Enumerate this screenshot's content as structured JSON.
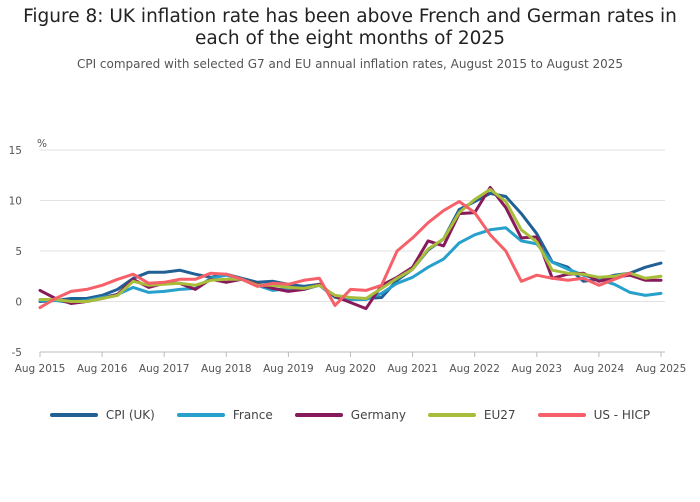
{
  "chart_data": {
    "type": "line",
    "title": "Figure 8: UK inflation rate has been above French and German rates in each of the eight months of 2025",
    "subtitle": "CPI compared with selected G7 and EU annual inflation rates, August 2015 to August 2025",
    "ylabel": "%",
    "ylim": [
      -5,
      15
    ],
    "yticks": [
      "15",
      "10",
      "5",
      "0",
      "-5"
    ],
    "ytick_values": [
      15,
      10,
      5,
      0,
      -5
    ],
    "xticks": [
      "Aug 2015",
      "Aug 2016",
      "Aug 2017",
      "Aug 2018",
      "Aug 2019",
      "Aug 2020",
      "Aug 2021",
      "Aug 2022",
      "Aug 2023",
      "Aug 2024",
      "Aug 2025"
    ],
    "x_start": 2015.58,
    "x_step": 0.25,
    "series": [
      {
        "name": "CPI (UK)",
        "color": "#206095",
        "values": [
          0,
          0.1,
          0.3,
          0.3,
          0.6,
          1.2,
          2.3,
          2.9,
          2.9,
          3.1,
          2.7,
          2.4,
          2.7,
          2.3,
          1.9,
          2.0,
          1.7,
          1.5,
          1.7,
          0.5,
          0.2,
          0.3,
          0.4,
          2.1,
          3.2,
          5.1,
          6.2,
          9.1,
          9.9,
          10.7,
          10.4,
          8.7,
          6.7,
          3.9,
          3.4,
          2.0,
          2.2,
          2.6,
          2.8,
          3.4,
          3.8
        ]
      },
      {
        "name": "France",
        "color": "#27a0cc",
        "values": [
          0.1,
          0.1,
          -0.1,
          0.1,
          0.4,
          0.7,
          1.4,
          0.9,
          1.0,
          1.2,
          1.3,
          2.3,
          2.6,
          2.2,
          1.6,
          1.1,
          1.3,
          1.2,
          1.6,
          0.4,
          0.2,
          0.2,
          0.8,
          1.8,
          2.4,
          3.4,
          4.2,
          5.8,
          6.6,
          7.1,
          7.3,
          6.0,
          5.7,
          3.9,
          3.2,
          2.6,
          2.2,
          1.7,
          0.9,
          0.6,
          0.8
        ]
      },
      {
        "name": "Germany",
        "color": "#871a5b",
        "values": [
          1.1,
          0.3,
          -0.2,
          0.0,
          0.3,
          0.7,
          2.2,
          1.4,
          1.8,
          1.8,
          1.2,
          2.2,
          1.9,
          2.2,
          1.7,
          1.3,
          1.0,
          1.2,
          1.7,
          0.5,
          -0.1,
          -0.7,
          1.6,
          2.4,
          3.4,
          6.0,
          5.5,
          8.7,
          8.8,
          11.3,
          9.3,
          6.3,
          6.4,
          2.3,
          2.7,
          2.8,
          2.0,
          2.4,
          2.6,
          2.1,
          2.1
        ]
      },
      {
        "name": "EU27",
        "color": "#a8bd3a",
        "values": [
          0.2,
          0.2,
          0.0,
          0.0,
          0.3,
          0.6,
          2.0,
          1.6,
          1.7,
          1.8,
          1.6,
          2.1,
          2.2,
          2.2,
          1.6,
          1.6,
          1.4,
          1.3,
          1.6,
          0.6,
          0.4,
          0.3,
          1.3,
          2.3,
          3.2,
          5.2,
          6.2,
          8.8,
          10.1,
          11.1,
          9.9,
          7.1,
          5.9,
          3.1,
          2.8,
          2.7,
          2.4,
          2.5,
          2.8,
          2.3,
          2.5
        ]
      },
      {
        "name": "US - HICP",
        "color": "#f66068",
        "values": [
          -0.6,
          0.3,
          1.0,
          1.2,
          1.6,
          2.2,
          2.7,
          1.8,
          1.9,
          2.2,
          2.2,
          2.8,
          2.7,
          2.2,
          1.5,
          1.8,
          1.7,
          2.1,
          2.3,
          -0.4,
          1.2,
          1.1,
          1.6,
          5.0,
          6.3,
          7.8,
          9.0,
          9.9,
          8.8,
          6.6,
          5.0,
          2.0,
          2.6,
          2.3,
          2.1,
          2.3,
          1.6,
          2.2,
          2.8
        ]
      }
    ]
  }
}
